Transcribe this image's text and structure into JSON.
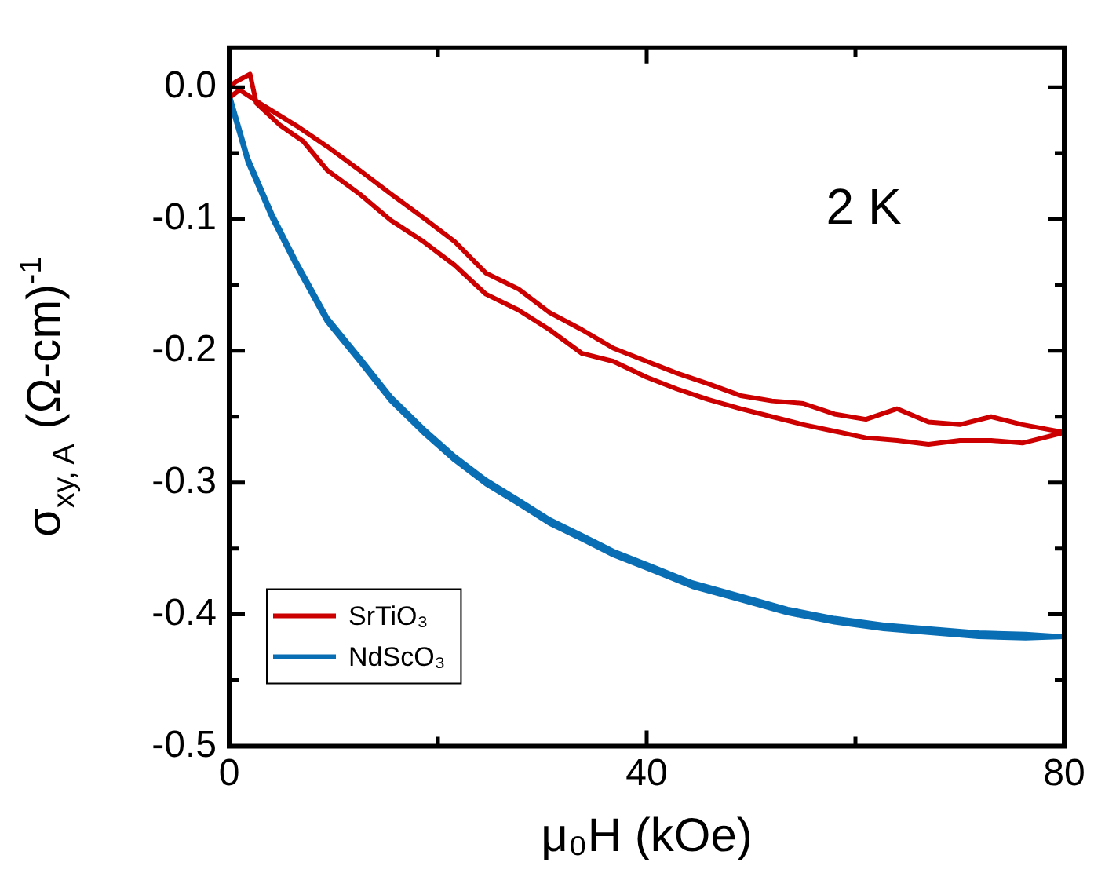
{
  "chart_data": {
    "type": "line",
    "xlabel": "μ₀H (kOe)",
    "ylabel": "σ$_{xy, A}$ (Ω-cm)$^{-1}$",
    "annotations": [
      "2 K"
    ],
    "xlim": [
      0,
      80
    ],
    "ylim": [
      -0.5,
      0.03
    ],
    "xticks": [
      0,
      {
        "value": 20,
        "label": null
      },
      40,
      {
        "value": 60,
        "label": null
      },
      80
    ],
    "yticks": [
      {
        "value": -0.5,
        "label": "-0.5"
      },
      {
        "value": -0.45,
        "label": null
      },
      {
        "value": -0.4,
        "label": "-0.4"
      },
      {
        "value": -0.35,
        "label": null
      },
      {
        "value": -0.3,
        "label": "-0.3"
      },
      {
        "value": -0.25,
        "label": null
      },
      {
        "value": -0.2,
        "label": "-0.2"
      },
      {
        "value": -0.15,
        "label": null
      },
      {
        "value": -0.1,
        "label": "-0.1"
      },
      {
        "value": -0.05,
        "label": null
      },
      {
        "value": 0,
        "label": "0.0"
      }
    ],
    "legend": "bottom left",
    "marker": "none",
    "line_style": "solid",
    "series": [
      {
        "name": "SrTiO₃",
        "color": "#cc0000",
        "x": [
          0,
          0.6,
          2,
          2.6,
          4.9,
          7.1,
          9.4,
          12.5,
          15.5,
          18.6,
          21.6,
          24.6,
          27.7,
          30.7,
          33.8,
          36.8,
          40,
          42.9,
          45.9,
          49,
          52,
          55,
          58,
          61,
          64,
          67,
          70,
          73,
          76,
          80,
          76,
          73,
          70,
          67,
          64,
          61,
          58,
          55,
          52,
          49,
          45.9,
          42.9,
          40,
          36.8,
          33.8,
          30.7,
          27.7,
          24.6,
          21.6,
          18.6,
          15.5,
          12.5,
          9.4,
          6.4,
          3.3,
          1,
          0
        ],
        "values": [
          0,
          0.004,
          0.01,
          -0.012,
          -0.029,
          -0.041,
          -0.063,
          -0.081,
          -0.101,
          -0.117,
          -0.135,
          -0.157,
          -0.169,
          -0.184,
          -0.202,
          -0.208,
          -0.22,
          -0.229,
          -0.237,
          -0.244,
          -0.25,
          -0.256,
          -0.261,
          -0.266,
          -0.268,
          -0.271,
          -0.268,
          -0.268,
          -0.27,
          -0.262,
          -0.256,
          -0.25,
          -0.256,
          -0.254,
          -0.244,
          -0.252,
          -0.248,
          -0.24,
          -0.238,
          -0.234,
          -0.225,
          -0.217,
          -0.208,
          -0.198,
          -0.184,
          -0.171,
          -0.153,
          -0.141,
          -0.117,
          -0.099,
          -0.081,
          -0.063,
          -0.045,
          -0.029,
          -0.014,
          -0.002,
          -0.008
        ]
      },
      {
        "name": "NdScO₃",
        "color": "#0a6eb4",
        "x": [
          0,
          1.8,
          4.1,
          6.4,
          9.4,
          12.5,
          15.5,
          18.6,
          21.6,
          24.6,
          27.7,
          30.7,
          33.8,
          36.8,
          40,
          44.4,
          49,
          53.5,
          58,
          62.7,
          67.2,
          71.8,
          76.3,
          80,
          76.3,
          71.8,
          67.2,
          62.7,
          58,
          53.5,
          49,
          44.4,
          40,
          36.8,
          33.8,
          30.7,
          27.7,
          24.6,
          21.6,
          18.6,
          15.5,
          12.5,
          9.4,
          6.4,
          4.1,
          1.8,
          0
        ],
        "values": [
          -0.008,
          -0.057,
          -0.099,
          -0.135,
          -0.178,
          -0.208,
          -0.238,
          -0.262,
          -0.283,
          -0.301,
          -0.316,
          -0.331,
          -0.343,
          -0.355,
          -0.365,
          -0.379,
          -0.389,
          -0.399,
          -0.406,
          -0.411,
          -0.414,
          -0.417,
          -0.418,
          -0.417,
          -0.415,
          -0.414,
          -0.411,
          -0.408,
          -0.403,
          -0.396,
          -0.386,
          -0.376,
          -0.362,
          -0.352,
          -0.34,
          -0.328,
          -0.313,
          -0.298,
          -0.28,
          -0.259,
          -0.235,
          -0.205,
          -0.175,
          -0.132,
          -0.096,
          -0.054,
          -0.005
        ]
      }
    ]
  }
}
